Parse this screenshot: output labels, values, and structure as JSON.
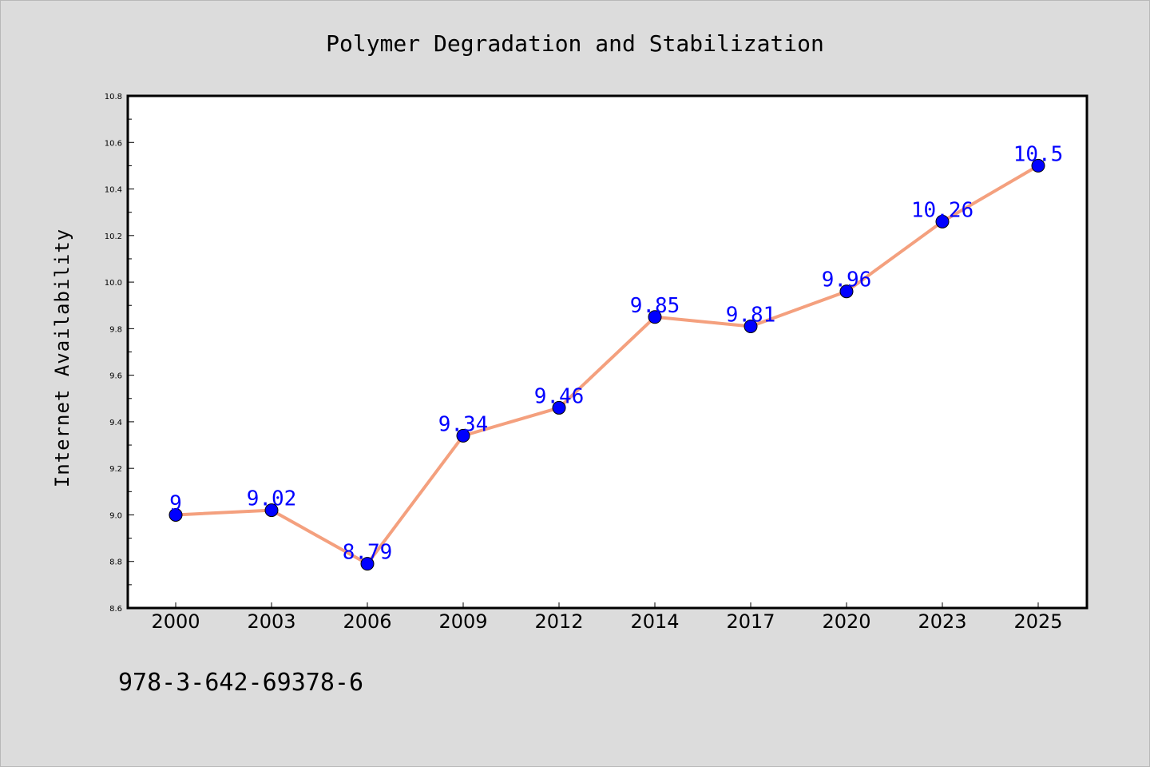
{
  "chart_data": {
    "type": "line",
    "title": "Polymer Degradation and Stabilization",
    "xlabel": "",
    "ylabel": "Internet Availability",
    "categories": [
      "2000",
      "2003",
      "2006",
      "2009",
      "2012",
      "2014",
      "2017",
      "2020",
      "2023",
      "2025"
    ],
    "series": [
      {
        "values": [
          9.0,
          9.02,
          8.79,
          9.34,
          9.46,
          9.85,
          9.81,
          9.96,
          10.26,
          10.5
        ],
        "value_labels": [
          "9",
          "9.02",
          "8.79",
          "9.34",
          "9.46",
          "9.85",
          "9.81",
          "9.96",
          "10.26",
          "10.5"
        ],
        "line_color": "#f4a07e",
        "marker_color": "#0000ff"
      }
    ],
    "ylim": [
      8.6,
      10.8
    ],
    "yticks": [
      "8.6",
      "8.8",
      "9.0",
      "9.2",
      "9.4",
      "9.6",
      "9.8",
      "10.0",
      "10.2",
      "10.4",
      "10.6",
      "10.8"
    ],
    "grid": false,
    "legend": "none"
  },
  "footer": {
    "isbn": "978-3-642-69378-6"
  },
  "colors": {
    "background": "#dcdcdc",
    "plot_background": "#ffffff",
    "label_color": "#0000ff"
  }
}
